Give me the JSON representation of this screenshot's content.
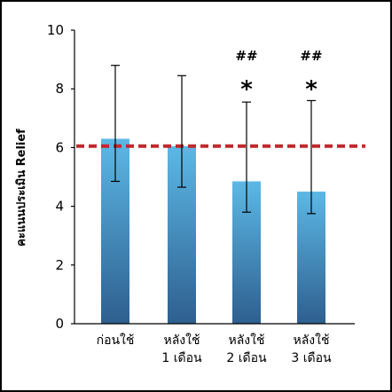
{
  "chart_data": {
    "type": "bar",
    "title": "",
    "xlabel": "",
    "ylabel": "คะแนนประเมิน Relief",
    "ylim": [
      0,
      10
    ],
    "yticks": [
      "0",
      "2",
      "4",
      "6",
      "8",
      "10"
    ],
    "categories": [
      [
        "ก่อนใช้"
      ],
      [
        "หลังใช้",
        "1 เดือน"
      ],
      [
        "หลังใช้",
        "2 เดือน"
      ],
      [
        "หลังใช้",
        "3 เดือน"
      ]
    ],
    "values": [
      6.3,
      6.05,
      4.85,
      4.5
    ],
    "error_upper": [
      8.8,
      8.45,
      7.55,
      7.6
    ],
    "error_lower": [
      4.85,
      4.65,
      3.8,
      3.75
    ],
    "reference_line": {
      "value": 6.05,
      "style": "dashed",
      "color": "#c0282d"
    },
    "annotations": [
      {
        "category_index": 2,
        "symbols": [
          "##",
          "*"
        ]
      },
      {
        "category_index": 3,
        "symbols": [
          "##",
          "*"
        ]
      }
    ],
    "bar_gradient": {
      "top": "#5cb8e6",
      "bottom": "#2e5f8f"
    },
    "grid": false,
    "legend": "none"
  }
}
